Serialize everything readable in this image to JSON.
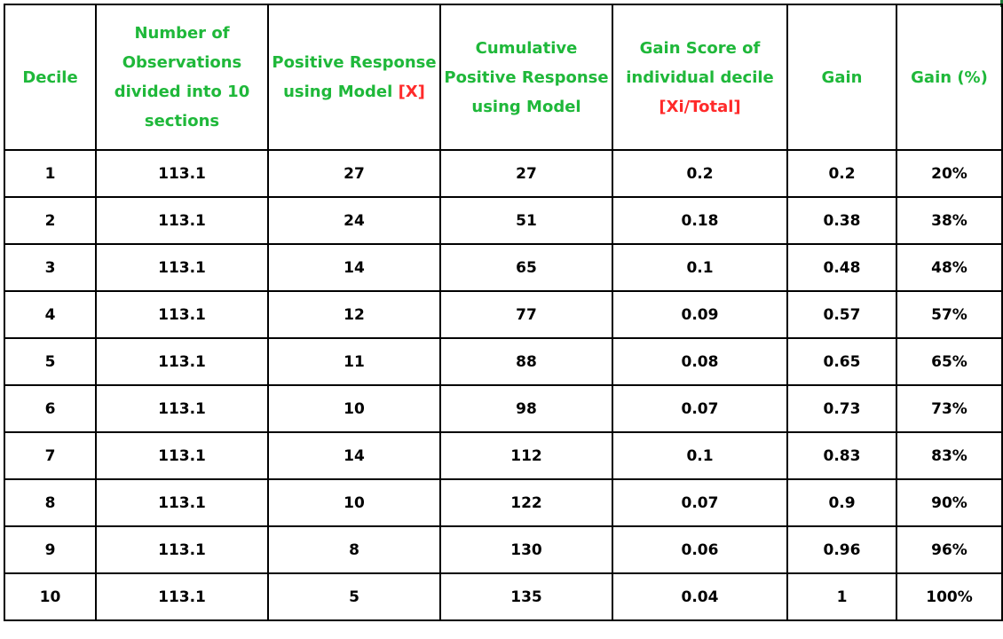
{
  "headers": {
    "decile": "Decile",
    "observations": "Number of Observations divided into 10 sections",
    "positive_response_text": "Positive Response using Model",
    "positive_response_marker": "[X]",
    "cumulative": "Cumulative Positive Response using Model",
    "gain_score_text": "Gain Score of individual decile",
    "gain_score_marker": "[Xi/Total]",
    "gain": "Gain",
    "gain_pct": "Gain (%)"
  },
  "colors": {
    "header_text": "#1fb83a",
    "marker_text": "#ff2a2a",
    "body_text": "#000000",
    "grid": "#000000"
  },
  "rows": [
    {
      "decile": "1",
      "observations": "113.1",
      "positive": "27",
      "cumulative": "27",
      "gain_score": "0.2",
      "gain": "0.2",
      "gain_pct": "20%"
    },
    {
      "decile": "2",
      "observations": "113.1",
      "positive": "24",
      "cumulative": "51",
      "gain_score": "0.18",
      "gain": "0.38",
      "gain_pct": "38%"
    },
    {
      "decile": "3",
      "observations": "113.1",
      "positive": "14",
      "cumulative": "65",
      "gain_score": "0.1",
      "gain": "0.48",
      "gain_pct": "48%"
    },
    {
      "decile": "4",
      "observations": "113.1",
      "positive": "12",
      "cumulative": "77",
      "gain_score": "0.09",
      "gain": "0.57",
      "gain_pct": "57%"
    },
    {
      "decile": "5",
      "observations": "113.1",
      "positive": "11",
      "cumulative": "88",
      "gain_score": "0.08",
      "gain": "0.65",
      "gain_pct": "65%"
    },
    {
      "decile": "6",
      "observations": "113.1",
      "positive": "10",
      "cumulative": "98",
      "gain_score": "0.07",
      "gain": "0.73",
      "gain_pct": "73%"
    },
    {
      "decile": "7",
      "observations": "113.1",
      "positive": "14",
      "cumulative": "112",
      "gain_score": "0.1",
      "gain": "0.83",
      "gain_pct": "83%"
    },
    {
      "decile": "8",
      "observations": "113.1",
      "positive": "10",
      "cumulative": "122",
      "gain_score": "0.07",
      "gain": "0.9",
      "gain_pct": "90%"
    },
    {
      "decile": "9",
      "observations": "113.1",
      "positive": "8",
      "cumulative": "130",
      "gain_score": "0.06",
      "gain": "0.96",
      "gain_pct": "96%"
    },
    {
      "decile": "10",
      "observations": "113.1",
      "positive": "5",
      "cumulative": "135",
      "gain_score": "0.04",
      "gain": "1",
      "gain_pct": "100%"
    }
  ]
}
